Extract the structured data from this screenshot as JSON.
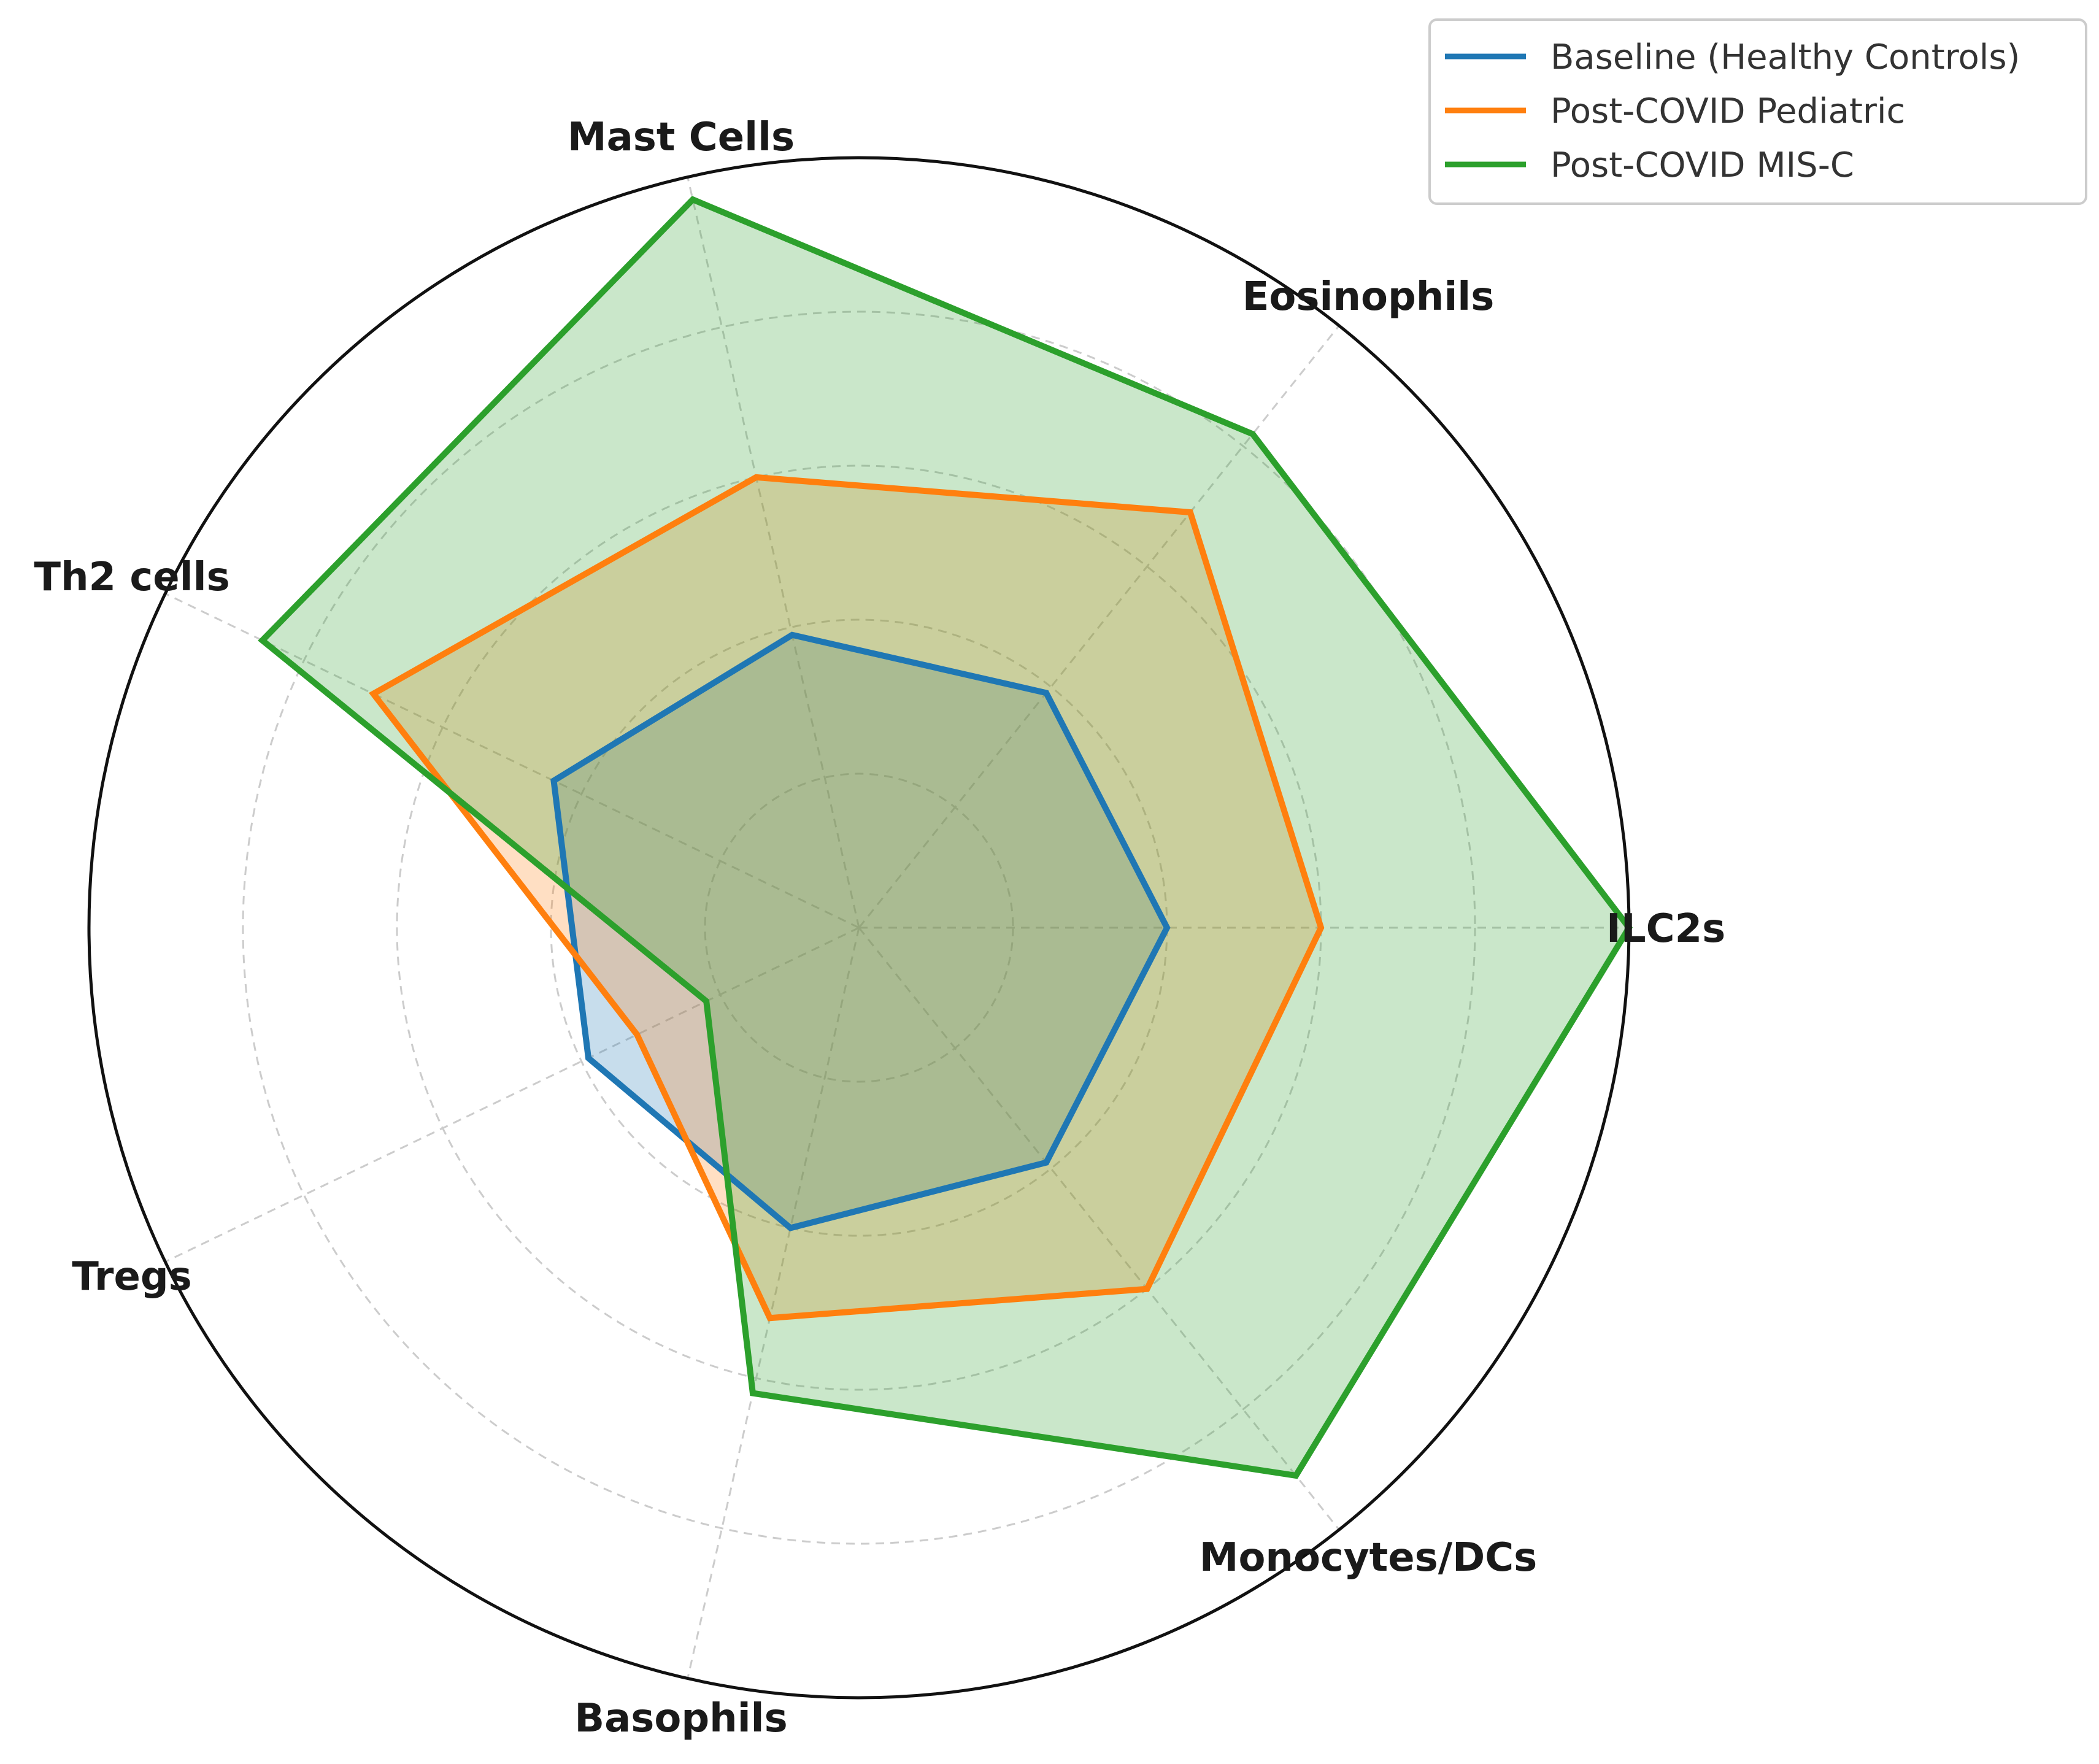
{
  "chart_data": {
    "type": "radar",
    "title": "",
    "axes": [
      "ILC2s",
      "Eosinophils",
      "Mast Cells",
      "Th2 cells",
      "Tregs",
      "Basophils",
      "Monocytes/DCs"
    ],
    "rmax": 5,
    "grid_levels": [
      1,
      2,
      3,
      4
    ],
    "grid": true,
    "legend_position": "top-right",
    "series": [
      {
        "name": "Baseline (Healthy Controls)",
        "color": "#1f77b4",
        "values": [
          2.0,
          1.95,
          1.95,
          2.2,
          1.95,
          2.0,
          1.95
        ]
      },
      {
        "name": "Post-COVID Pediatric",
        "color": "#ff7f0e",
        "values": [
          3.0,
          3.45,
          3.0,
          3.5,
          1.6,
          2.6,
          3.0
        ]
      },
      {
        "name": "Post-COVID MIS-C",
        "color": "#2ca02c",
        "values": [
          5.0,
          4.1,
          4.85,
          4.3,
          1.1,
          3.1,
          4.55
        ]
      }
    ]
  }
}
